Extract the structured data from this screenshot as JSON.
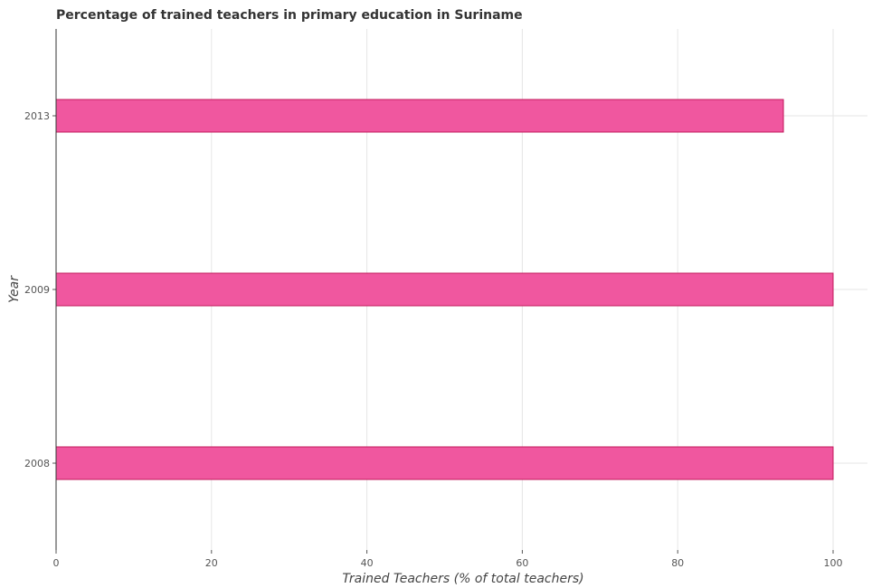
{
  "chart_data": {
    "type": "bar",
    "orientation": "horizontal",
    "title": "Percentage of trained teachers in primary education in Suriname",
    "xlabel": "Trained Teachers (% of total teachers)",
    "ylabel": "Year",
    "categories": [
      "2008",
      "2009",
      "2013"
    ],
    "values": [
      100,
      100,
      93.6
    ],
    "xlim": [
      0,
      100
    ],
    "xticks": [
      "0",
      "20",
      "40",
      "60",
      "80",
      "100"
    ],
    "bar_color": "#f0579f",
    "bar_edge_color": "#c2185b",
    "grid": true
  }
}
